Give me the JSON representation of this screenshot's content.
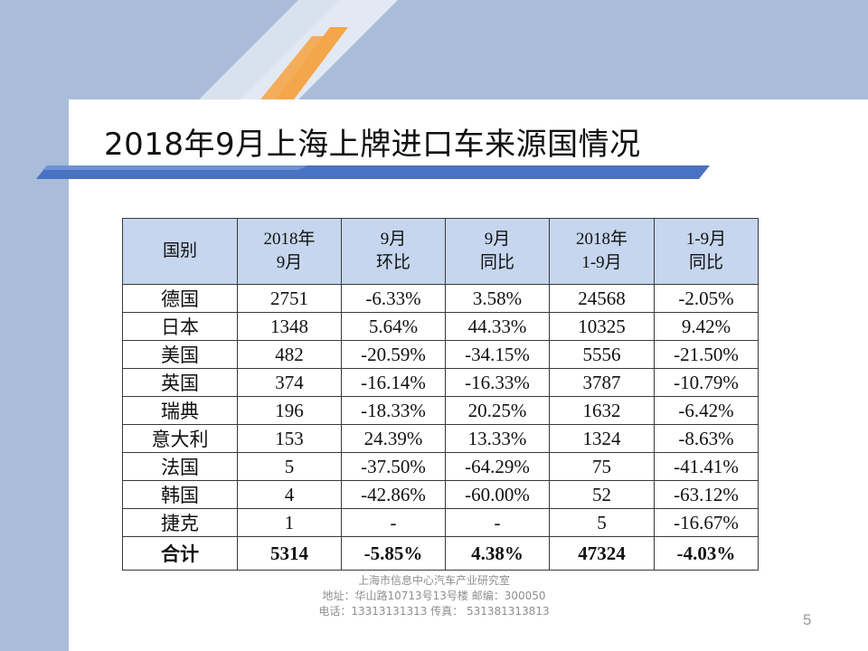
{
  "slide": {
    "title": "2018年9月上海上牌进口车来源国情况",
    "page_number": "5"
  },
  "table": {
    "headers": [
      [
        "国别"
      ],
      [
        "2018年",
        "9月"
      ],
      [
        "9月",
        "环比"
      ],
      [
        "9月",
        "同比"
      ],
      [
        "2018年",
        "1-9月"
      ],
      [
        "1-9月",
        "同比"
      ]
    ],
    "rows": [
      [
        "德国",
        "2751",
        "-6.33%",
        "3.58%",
        "24568",
        "-2.05%"
      ],
      [
        "日本",
        "1348",
        "5.64%",
        "44.33%",
        "10325",
        "9.42%"
      ],
      [
        "美国",
        "482",
        "-20.59%",
        "-34.15%",
        "5556",
        "-21.50%"
      ],
      [
        "英国",
        "374",
        "-16.14%",
        "-16.33%",
        "3787",
        "-10.79%"
      ],
      [
        "瑞典",
        "196",
        "-18.33%",
        "20.25%",
        "1632",
        "-6.42%"
      ],
      [
        "意大利",
        "153",
        "24.39%",
        "13.33%",
        "1324",
        "-8.63%"
      ],
      [
        "法国",
        "5",
        "-37.50%",
        "-64.29%",
        "75",
        "-41.41%"
      ],
      [
        "韩国",
        "4",
        "-42.86%",
        "-60.00%",
        "52",
        "-63.12%"
      ],
      [
        "捷克",
        "1",
        "-",
        "-",
        "5",
        "-16.67%"
      ]
    ],
    "total": [
      "合计",
      "5314",
      "-5.85%",
      "4.38%",
      "47324",
      "-4.03%"
    ]
  },
  "footer": {
    "org": "上海市信息中心汽车产业研究室",
    "address": "地址：华山路10713号13号楼     邮编：300050",
    "contact": "电话：13313131313   传真：  531381313813"
  },
  "colors": {
    "sidebar_blue": "#a9bcd9",
    "header_fill": "#c6d6ee",
    "accent_orange": "#f4a64a",
    "bar_blue": "#4a72c4"
  }
}
